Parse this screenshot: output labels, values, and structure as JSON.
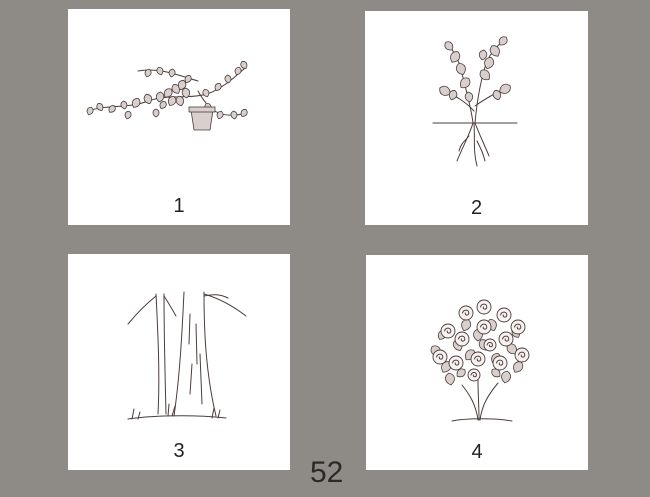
{
  "cards": [
    {
      "number": "1",
      "subject": "ivy-in-pot"
    },
    {
      "number": "2",
      "subject": "seedling-with-roots"
    },
    {
      "number": "3",
      "subject": "tree-trunk"
    },
    {
      "number": "4",
      "subject": "rose-bush"
    }
  ],
  "page_number": "52",
  "colors": {
    "background": "#8e8b87",
    "card": "#ffffff",
    "ink": "#4a3d3a"
  }
}
